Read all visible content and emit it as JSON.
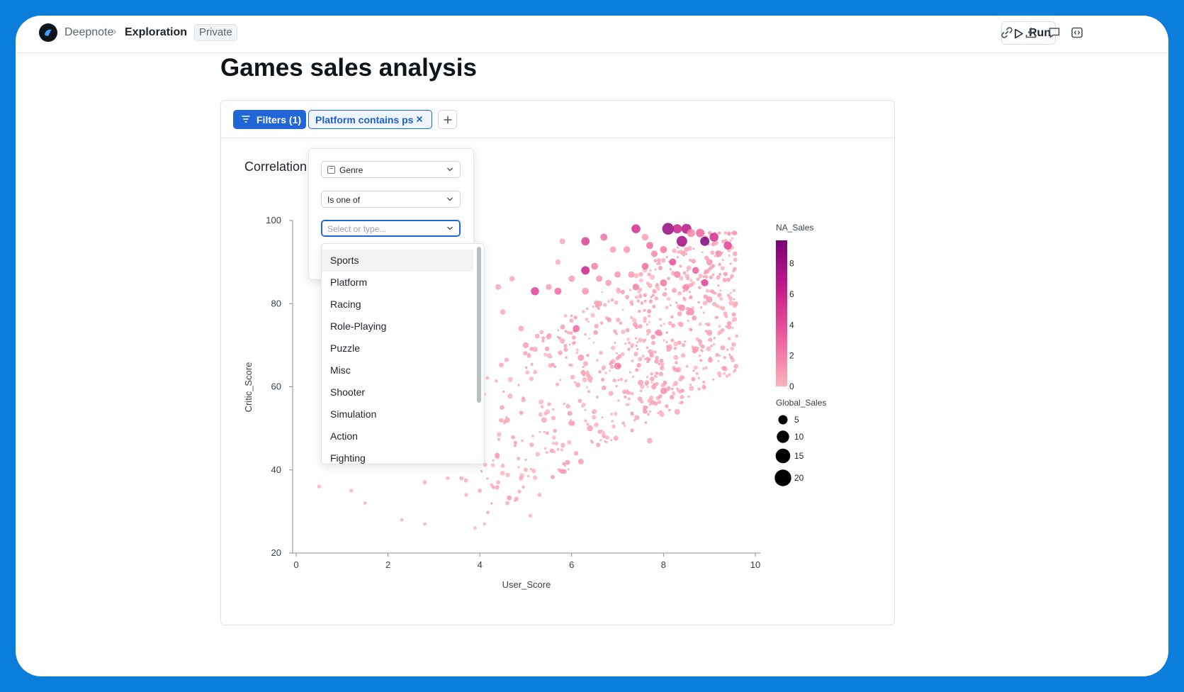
{
  "header": {
    "app_name": "Deepnote",
    "separator": "›",
    "page_name": "Exploration",
    "visibility_badge": "Private",
    "run_label": "Run",
    "icons": [
      "play-icon",
      "link-icon",
      "download-icon",
      "comment-icon",
      "embed-icon"
    ]
  },
  "page": {
    "title": "Games sales analysis"
  },
  "toolbar": {
    "filters_label": "Filters (1)",
    "active_filter": "Platform contains ps",
    "add_filter": "+"
  },
  "filter_popover": {
    "column": "Genre",
    "operator": "Is one of",
    "value_placeholder": "Select or type...",
    "options": [
      "Sports",
      "Platform",
      "Racing",
      "Role-Playing",
      "Puzzle",
      "Misc",
      "Shooter",
      "Simulation",
      "Action",
      "Fighting"
    ],
    "highlighted_option": "Sports"
  },
  "chart_title": "Correlation",
  "colors": {
    "accent": "#2166d9",
    "background": "#0b7ddb",
    "point_low": "#fbb4bd",
    "point_high": "#7a0177"
  },
  "chart_data": {
    "type": "scatter",
    "xlabel": "User_Score",
    "ylabel": "Critic_Score",
    "xlim": [
      0,
      10
    ],
    "ylim": [
      20,
      100
    ],
    "x_ticks": [
      0,
      2,
      4,
      6,
      8,
      10
    ],
    "y_ticks": [
      20,
      40,
      60,
      80,
      100
    ],
    "color_field": "NA_Sales",
    "color_ticks": [
      0,
      2,
      4,
      6,
      8
    ],
    "color_range": [
      0,
      9.5
    ],
    "size_field": "Global_Sales",
    "size_legend": [
      5,
      10,
      15,
      20
    ],
    "points": [
      [
        0.5,
        36,
        0.1,
        0.3
      ],
      [
        1.2,
        35,
        0.1,
        0.3
      ],
      [
        1.5,
        32,
        0.1,
        0.2
      ],
      [
        2.3,
        28,
        0.1,
        0.2
      ],
      [
        2.8,
        27,
        0.1,
        0.2
      ],
      [
        2.8,
        37,
        0.2,
        0.4
      ],
      [
        3.3,
        38,
        0.1,
        0.3
      ],
      [
        3.6,
        38,
        0.2,
        0.5
      ],
      [
        3.7,
        34,
        0.1,
        0.3
      ],
      [
        4.0,
        35,
        0.2,
        0.4
      ],
      [
        3.9,
        26,
        0.1,
        0.2
      ],
      [
        4.1,
        27,
        0.1,
        0.2
      ],
      [
        4.4,
        37,
        0.2,
        0.4
      ],
      [
        4.6,
        32,
        0.2,
        0.5
      ],
      [
        4.8,
        33,
        0.3,
        0.6
      ],
      [
        5.1,
        29,
        0.1,
        0.3
      ],
      [
        5.3,
        34,
        0.2,
        0.4
      ],
      [
        4.9,
        38,
        0.3,
        0.6
      ],
      [
        4.5,
        41,
        0.2,
        0.5
      ],
      [
        5.0,
        40,
        0.2,
        0.5
      ],
      [
        5.0,
        70,
        0.8,
        1.5
      ],
      [
        4.9,
        74,
        0.6,
        1.2
      ],
      [
        5.2,
        69,
        0.4,
        1.0
      ],
      [
        5.5,
        72,
        0.5,
        1.1
      ],
      [
        5.8,
        71,
        0.4,
        1.0
      ],
      [
        6.3,
        83,
        1.2,
        2.3
      ],
      [
        6.6,
        80,
        0.8,
        1.6
      ],
      [
        6.0,
        86,
        0.9,
        1.8
      ],
      [
        5.5,
        84,
        0.7,
        1.5
      ],
      [
        5.2,
        83,
        4.5,
        3.5
      ],
      [
        4.4,
        84,
        0.6,
        1.3
      ],
      [
        4.5,
        78,
        0.4,
        1.0
      ],
      [
        3.9,
        86,
        0.8,
        2.0
      ],
      [
        3.9,
        83,
        0.9,
        2.2
      ],
      [
        4.7,
        86,
        0.5,
        1.1
      ],
      [
        5.7,
        83,
        2.8,
        2.5
      ],
      [
        6.3,
        95,
        4.5,
        3.8
      ],
      [
        6.3,
        88,
        6.0,
        4.0
      ],
      [
        6.7,
        96,
        2.5,
        2.5
      ],
      [
        7.4,
        98,
        5.5,
        4.5
      ],
      [
        7.6,
        96,
        0.8,
        2.0
      ],
      [
        8.1,
        98,
        8.5,
        9.0
      ],
      [
        8.3,
        98,
        6.2,
        5.0
      ],
      [
        8.5,
        98,
        7.0,
        6.0
      ],
      [
        8.4,
        95,
        8.0,
        7.0
      ],
      [
        8.8,
        97,
        3.0,
        4.0
      ],
      [
        9.1,
        96,
        5.5,
        4.5
      ],
      [
        8.9,
        95,
        9.3,
        5.0
      ],
      [
        9.4,
        94,
        4.5,
        3.5
      ],
      [
        9.2,
        92,
        1.5,
        2.0
      ],
      [
        8.6,
        97,
        1.8,
        3.5
      ],
      [
        8.0,
        93,
        2.2,
        2.5
      ],
      [
        7.8,
        92,
        1.6,
        2.0
      ],
      [
        7.2,
        93,
        1.0,
        2.0
      ],
      [
        6.9,
        93,
        0.8,
        1.8
      ],
      [
        7.7,
        94,
        2.5,
        2.4
      ],
      [
        8.9,
        85,
        4.5,
        2.5
      ],
      [
        9.0,
        90,
        1.2,
        1.8
      ],
      [
        7.0,
        65,
        2.2,
        2.2
      ],
      [
        8.0,
        59,
        1.5,
        1.8
      ],
      [
        6.2,
        67,
        1.2,
        1.8
      ],
      [
        6.4,
        62,
        0.5,
        1.3
      ],
      [
        8.3,
        54,
        0.6,
        1.3
      ],
      [
        7.5,
        61,
        0.8,
        1.4
      ],
      [
        6.1,
        74,
        2.8,
        2.3
      ],
      [
        7.9,
        73,
        1.7,
        1.8
      ],
      [
        8.7,
        69,
        0.9,
        1.5
      ],
      [
        8.6,
        78,
        1.4,
        2.0
      ],
      [
        9.0,
        81,
        1.2,
        1.8
      ],
      [
        7.3,
        87,
        1.0,
        1.8
      ],
      [
        6.5,
        89,
        1.9,
        2.3
      ],
      [
        6.6,
        86,
        1.1,
        1.8
      ],
      [
        5.8,
        95,
        0.5,
        1.3
      ],
      [
        5.7,
        90,
        0.4,
        1.0
      ],
      [
        6.4,
        50,
        0.8,
        1.5
      ],
      [
        6.2,
        42,
        0.6,
        1.4
      ],
      [
        7.7,
        47,
        0.5,
        1.2
      ],
      [
        5.4,
        52,
        0.5,
        1.2
      ],
      [
        4.6,
        52,
        0.4,
        1.0
      ],
      [
        9.0,
        73,
        0.9,
        1.4
      ],
      [
        8.0,
        85,
        2.4,
        2.3
      ],
      [
        8.3,
        87,
        1.9,
        2.0
      ],
      [
        8.5,
        84,
        1.6,
        1.8
      ],
      [
        8.7,
        88,
        3.2,
        2.2
      ],
      [
        8.2,
        90,
        3.8,
        2.4
      ],
      [
        7.4,
        84,
        2.1,
        2.1
      ],
      [
        7.0,
        87,
        1.1,
        1.7
      ],
      [
        6.8,
        85,
        0.9,
        1.6
      ],
      [
        7.6,
        89,
        2.7,
        2.2
      ],
      [
        8.4,
        79,
        1.6,
        1.9
      ]
    ]
  },
  "legend": {
    "color_title": "NA_Sales",
    "color_ticks": [
      "8",
      "6",
      "4",
      "2",
      "0"
    ],
    "size_title": "Global_Sales",
    "size_labels": [
      "5",
      "10",
      "15",
      "20"
    ]
  },
  "axes": {
    "x_ticks": [
      "0",
      "2",
      "4",
      "6",
      "8",
      "10"
    ],
    "y_ticks": [
      "100",
      "80",
      "60",
      "40",
      "20"
    ],
    "xlabel": "User_Score",
    "ylabel": "Critic_Score"
  }
}
